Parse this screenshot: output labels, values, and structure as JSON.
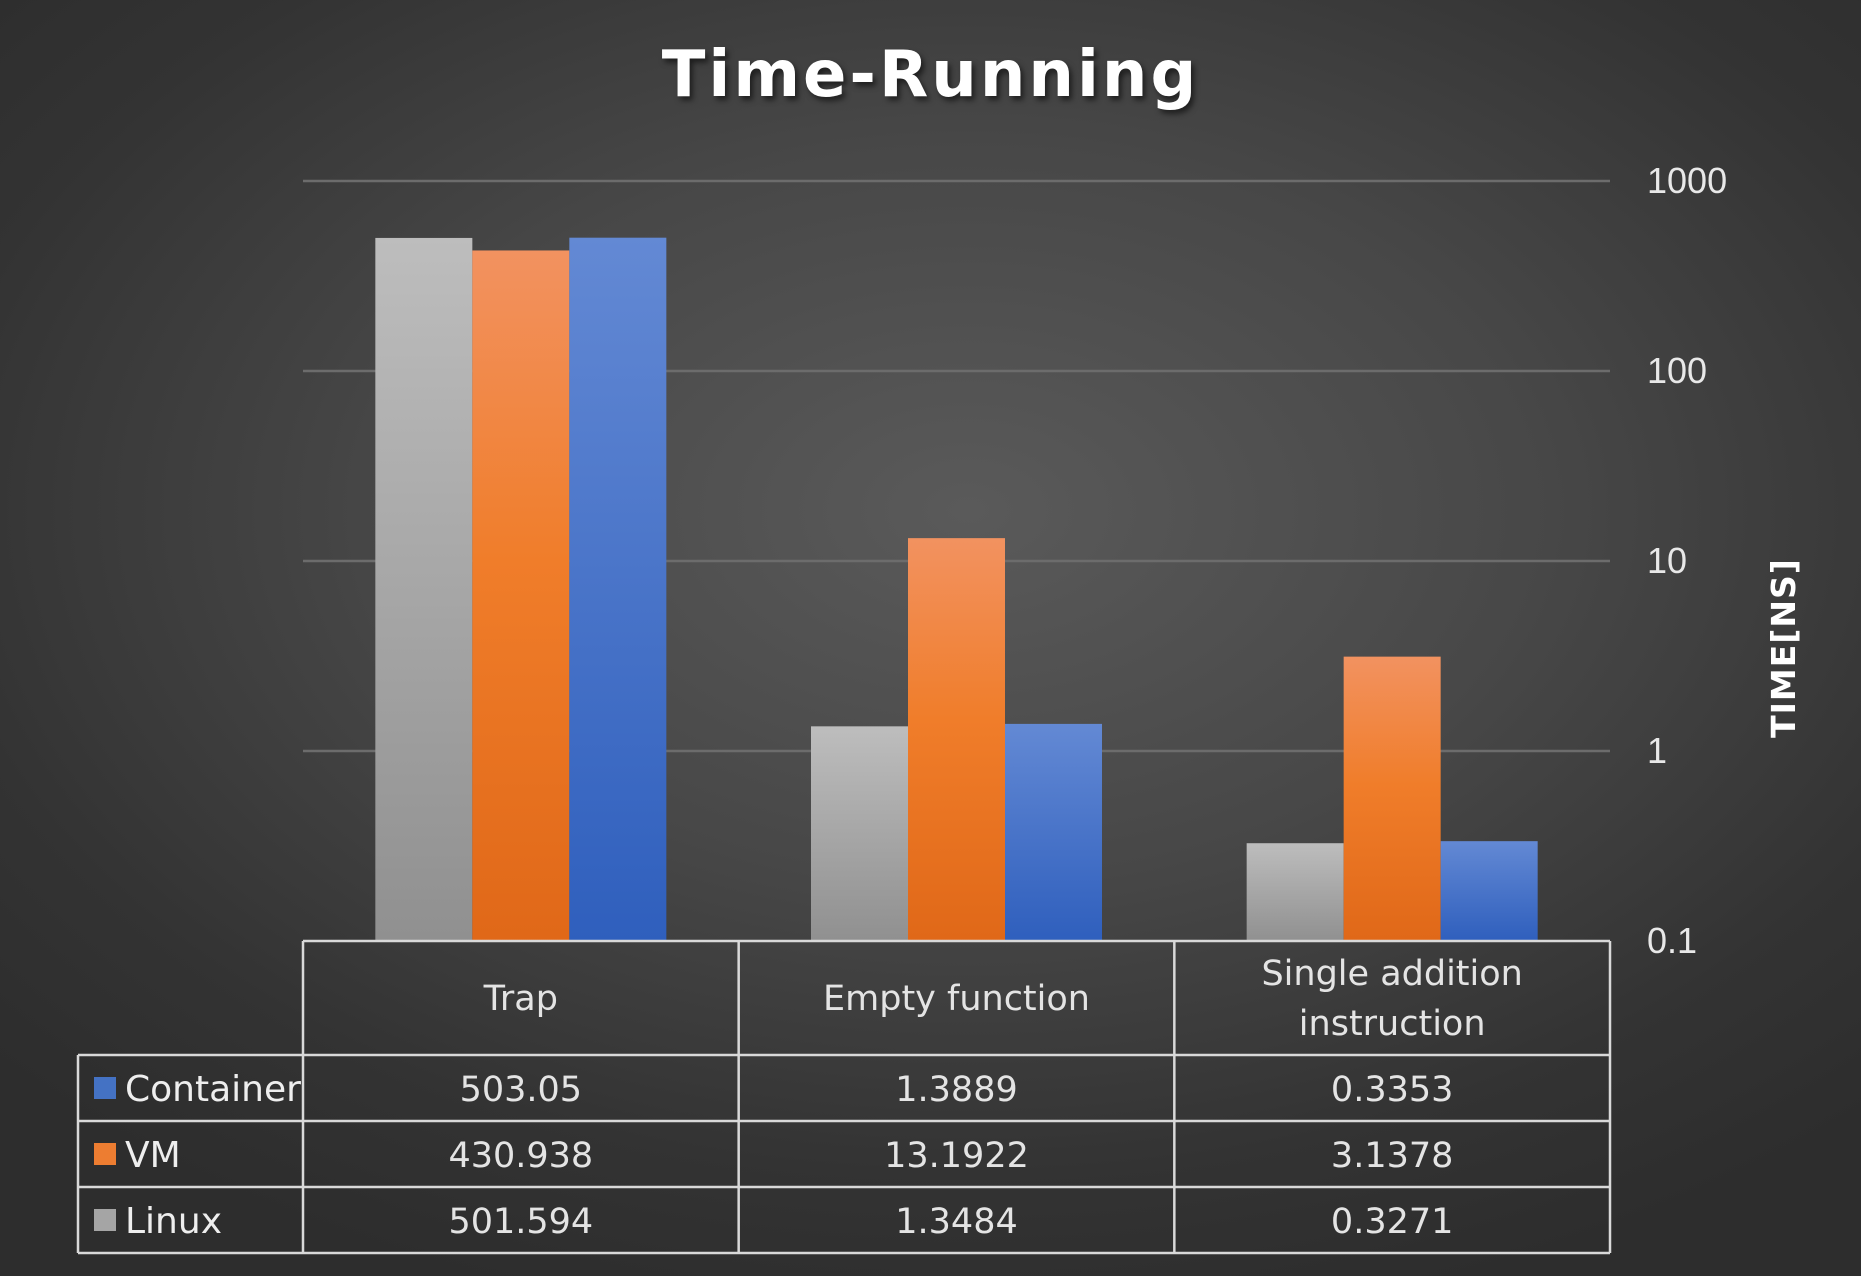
{
  "chart_data": {
    "type": "bar",
    "title": "Time-Running",
    "ylabel": "TIME[NS]",
    "xlabel": "",
    "yscale": "log",
    "ylim": [
      0.1,
      1000
    ],
    "yticks": [
      "1000",
      "100",
      "10",
      "1",
      "0.1"
    ],
    "ytick_values": [
      1000,
      100,
      10,
      1,
      0.1
    ],
    "y_axis_position": "right",
    "grid": true,
    "legend": "data-table-below",
    "categories": [
      [
        "Trap"
      ],
      [
        "Empty function"
      ],
      [
        "Single addition",
        "instruction"
      ]
    ],
    "series": [
      {
        "name": "Linux",
        "color": "#a5a5a5",
        "values": [
          501.594,
          1.3484,
          0.3271
        ]
      },
      {
        "name": "VM",
        "color": "#ed7d31",
        "values": [
          430.938,
          13.1922,
          3.1378
        ]
      },
      {
        "name": "Container",
        "color": "#4472c4",
        "values": [
          503.05,
          1.3889,
          0.3353
        ]
      }
    ],
    "table_rows": [
      {
        "name": "Container",
        "color": "#4472c4",
        "cells": [
          "503.05",
          "1.3889",
          "0.3353"
        ]
      },
      {
        "name": "VM",
        "color": "#ed7d31",
        "cells": [
          "430.938",
          "13.1922",
          "3.1378"
        ]
      },
      {
        "name": "Linux",
        "color": "#a5a5a5",
        "cells": [
          "501.594",
          "1.3484",
          "0.3271"
        ]
      }
    ]
  }
}
